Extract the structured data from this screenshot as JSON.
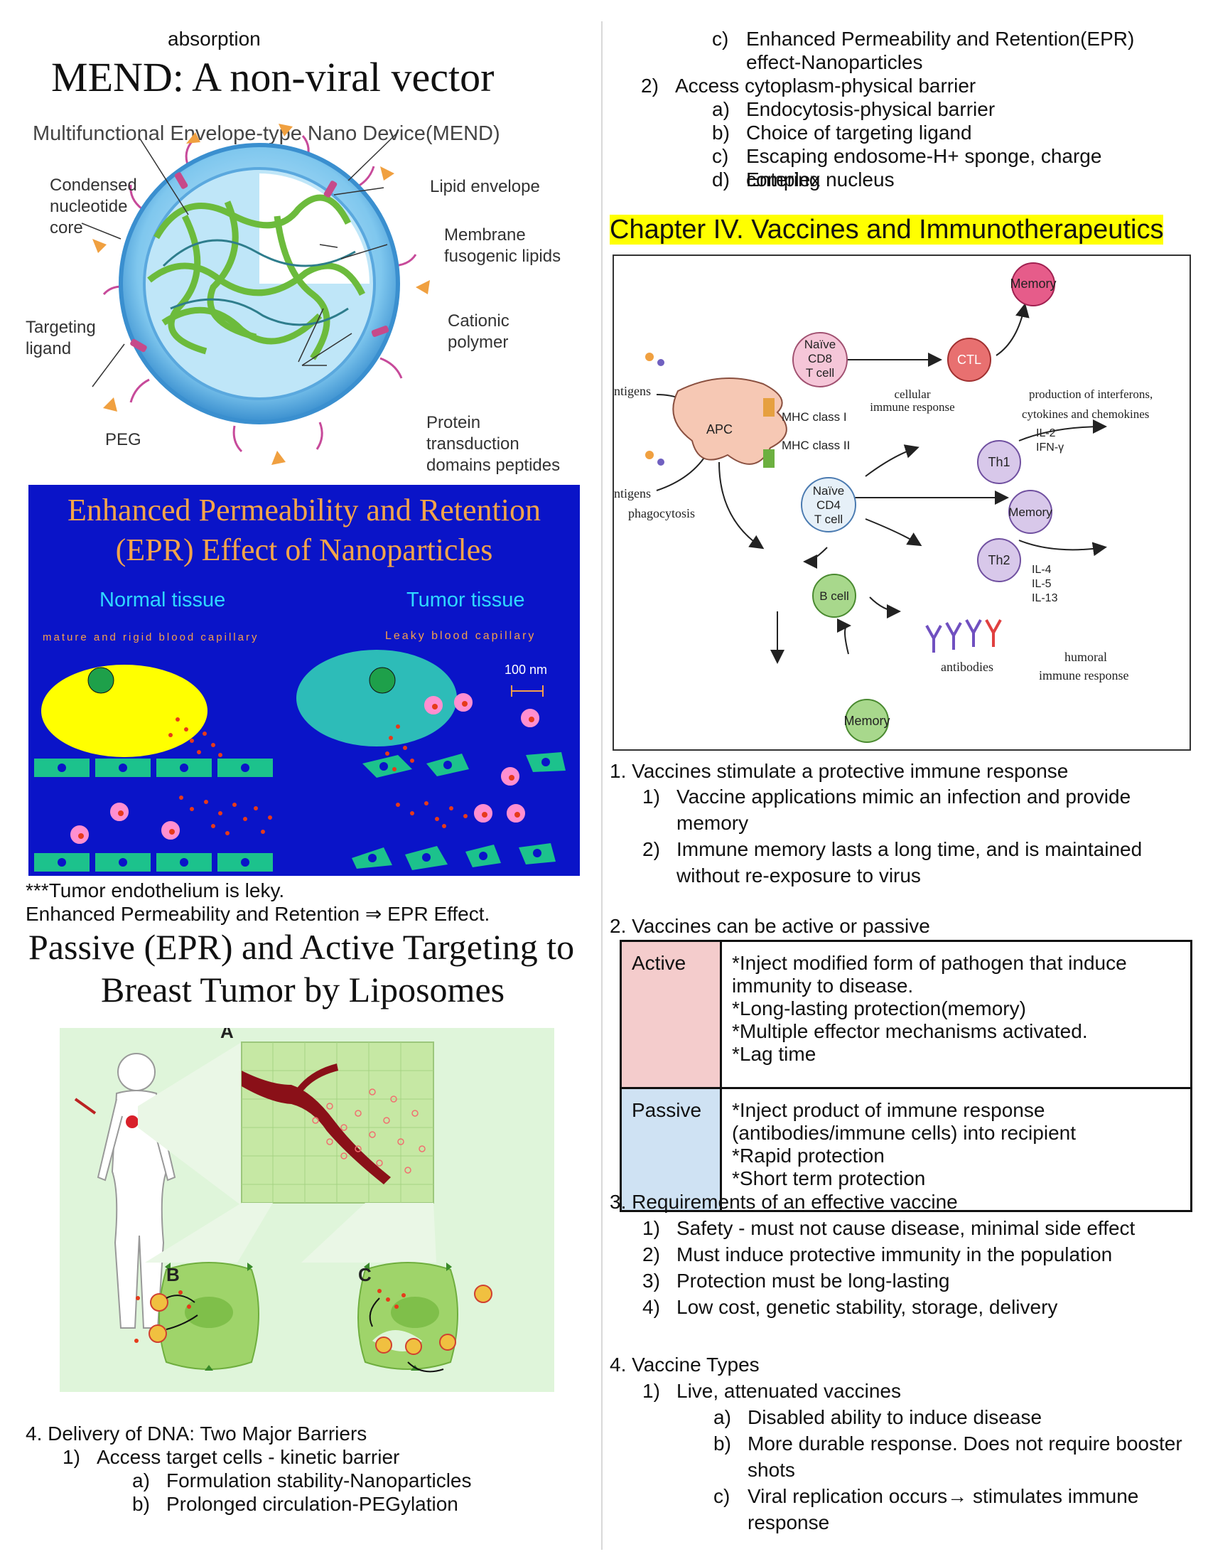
{
  "left": {
    "top_word": "absorption",
    "mend": {
      "title": "MEND: A non-viral vector",
      "subtitle": "Multifunctional Envelope-type Nano Device(MEND)",
      "labels": {
        "core_1": "Condensed",
        "core_2": "nucleotide",
        "core_3": "core",
        "lipid": "Lipid envelope",
        "membrane_1": "Membrane",
        "membrane_2": "fusogenic lipids",
        "targeting_1": "Targeting",
        "targeting_2": "ligand",
        "cationic_1": "Cationic",
        "cationic_2": "polymer",
        "peg": "PEG",
        "protein_1": "Protein",
        "protein_2": "transduction",
        "protein_3": "domains peptides"
      }
    },
    "epr": {
      "title_1": "Enhanced Permeability and Retention",
      "title_2": "(EPR) Effect of Nanoparticles",
      "normal": "Normal tissue",
      "tumor": "Tumor tissue",
      "normal_sub": "mature and rigid blood capillary",
      "tumor_sub": "Leaky blood capillary",
      "scale": "100 nm"
    },
    "note_1": "***Tumor endothelium is leky.",
    "note_2": "Enhanced Permeability and Retention ⇒ EPR Effect.",
    "liposome": {
      "title_1": "Passive (EPR) and Active Targeting to",
      "title_2": "Breast Tumor by Liposomes",
      "label_a": "A",
      "label_b": "B",
      "label_c": "C"
    },
    "delivery": {
      "heading": "4. Delivery of DNA: Two Major Barriers",
      "item1_num": "1)",
      "item1": "Access target cells - kinetic barrier",
      "sub_a_num": "a)",
      "sub_a": "Formulation stability-Nanoparticles",
      "sub_b_num": "b)",
      "sub_b": "Prolonged circulation-PEGylation"
    }
  },
  "right": {
    "cont": {
      "c_num": "c)",
      "c_line1": "Enhanced Permeability and Retention(EPR)",
      "c_line2": "effect-Nanoparticles",
      "item2_num": "2)",
      "item2": "Access cytoplasm-physical barrier",
      "subs": [
        {
          "num": "a)",
          "text": "Endocytosis-physical barrier"
        },
        {
          "num": "b)",
          "text": "Choice of targeting ligand"
        },
        {
          "num": "c)",
          "text": "Escaping endosome-H+ sponge, charge complex"
        },
        {
          "num": "d)",
          "text": "Entering nucleus"
        }
      ]
    },
    "chapter": "Chapter IV. Vaccines and Immunotherapeutics",
    "immune": {
      "memory": "Memory",
      "naive_cd8_1": "Naïve",
      "naive_cd8_2": "CD8",
      "naive_cd8_3": "T cell",
      "ctl": "CTL",
      "antigens_1": "ntigens",
      "antigens_2": "ntigens",
      "phagocytosis": "phagocytosis",
      "apc": "APC",
      "mhc1": "MHC class I",
      "mhc2": "MHC class II",
      "cellular_1": "cellular",
      "cellular_2": "immune response",
      "interferons_1": "production of interferons,",
      "interferons_2": "cytokines and chemokines",
      "il2": "IL-2",
      "ifn": "IFN-γ",
      "th1": "Th1",
      "naive_cd4_1": "Naïve",
      "naive_cd4_2": "CD4",
      "naive_cd4_3": "T cell",
      "th2": "Th2",
      "il4": "IL-4",
      "il5": "IL-5",
      "il13": "IL-13",
      "bcell": "B cell",
      "antibodies": "antibodies",
      "humoral_1": "humoral",
      "humoral_2": "immune response"
    },
    "sec1": {
      "heading": "1. Vaccines stimulate a protective immune response",
      "items": [
        {
          "num": "1)",
          "line1": "Vaccine applications mimic an infection and provide",
          "line2": "memory"
        },
        {
          "num": "2)",
          "line1": "Immune memory lasts a long time, and is maintained",
          "line2": "without re-exposure to virus"
        }
      ]
    },
    "sec2": {
      "heading": "2. Vaccines can be active or passive",
      "table": [
        {
          "label": "Active",
          "color": "#f4cccc",
          "lines": [
            "*Inject modified form of pathogen that induce",
            "immunity to disease.",
            "*Long-lasting protection(memory)",
            "*Multiple effector mechanisms activated.",
            "*Lag time"
          ]
        },
        {
          "label": "Passive",
          "color": "#cfe2f3",
          "lines": [
            "*Inject product of immune response",
            "(antibodies/immune cells) into recipient",
            "*Rapid protection",
            "*Short term protection"
          ]
        }
      ]
    },
    "sec3": {
      "heading": "3. Requirements of an effective vaccine",
      "items": [
        {
          "num": "1)",
          "text": "Safety - must not cause disease, minimal side effect"
        },
        {
          "num": "2)",
          "text": "Must induce protective immunity in the population"
        },
        {
          "num": "3)",
          "text": "Protection must be long-lasting"
        },
        {
          "num": "4)",
          "text": "Low cost, genetic stability, storage, delivery"
        }
      ]
    },
    "sec4": {
      "heading": "4. Vaccine Types",
      "item1_num": "1)",
      "item1": "Live, attenuated vaccines",
      "subs": [
        {
          "num": "a)",
          "line1": "Disabled ability to induce disease",
          "line2": ""
        },
        {
          "num": "b)",
          "line1": "More durable response. Does not require booster",
          "line2": "shots"
        },
        {
          "num": "c)",
          "line1": "Viral replication occurs→ stimulates immune",
          "line2": "response"
        }
      ]
    }
  }
}
